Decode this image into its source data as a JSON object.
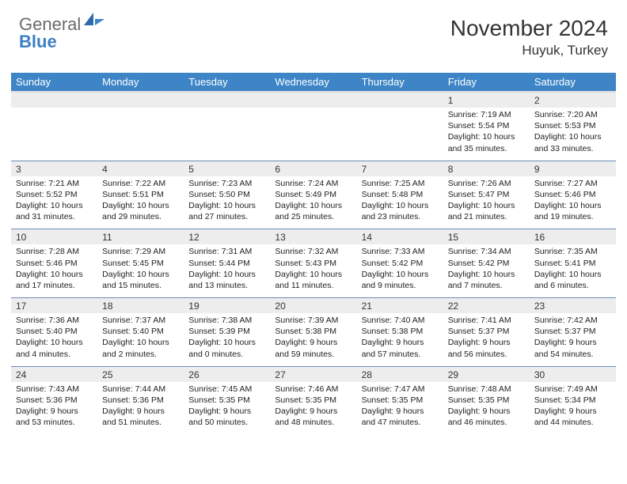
{
  "brand": {
    "part1": "General",
    "part2": "Blue"
  },
  "title": "November 2024",
  "location": "Huyuk, Turkey",
  "colors": {
    "header_bg": "#3d85c6",
    "header_text": "#ffffff",
    "daynum_bg": "#ededed",
    "row_rule": "#6a8db5",
    "body_text": "#222222",
    "brand_gray": "#6a6a6a",
    "brand_blue": "#3b7fc4",
    "page_bg": "#ffffff"
  },
  "typography": {
    "title_fontsize": 28,
    "location_fontsize": 17,
    "dow_fontsize": 13,
    "daynum_fontsize": 12,
    "details_fontsize": 10.5,
    "font_family": "Arial"
  },
  "days_of_week": [
    "Sunday",
    "Monday",
    "Tuesday",
    "Wednesday",
    "Thursday",
    "Friday",
    "Saturday"
  ],
  "weeks": [
    {
      "nums": [
        "",
        "",
        "",
        "",
        "",
        "1",
        "2"
      ],
      "cells": [
        null,
        null,
        null,
        null,
        null,
        {
          "sunrise": "Sunrise: 7:19 AM",
          "sunset": "Sunset: 5:54 PM",
          "day1": "Daylight: 10 hours",
          "day2": "and 35 minutes."
        },
        {
          "sunrise": "Sunrise: 7:20 AM",
          "sunset": "Sunset: 5:53 PM",
          "day1": "Daylight: 10 hours",
          "day2": "and 33 minutes."
        }
      ]
    },
    {
      "nums": [
        "3",
        "4",
        "5",
        "6",
        "7",
        "8",
        "9"
      ],
      "cells": [
        {
          "sunrise": "Sunrise: 7:21 AM",
          "sunset": "Sunset: 5:52 PM",
          "day1": "Daylight: 10 hours",
          "day2": "and 31 minutes."
        },
        {
          "sunrise": "Sunrise: 7:22 AM",
          "sunset": "Sunset: 5:51 PM",
          "day1": "Daylight: 10 hours",
          "day2": "and 29 minutes."
        },
        {
          "sunrise": "Sunrise: 7:23 AM",
          "sunset": "Sunset: 5:50 PM",
          "day1": "Daylight: 10 hours",
          "day2": "and 27 minutes."
        },
        {
          "sunrise": "Sunrise: 7:24 AM",
          "sunset": "Sunset: 5:49 PM",
          "day1": "Daylight: 10 hours",
          "day2": "and 25 minutes."
        },
        {
          "sunrise": "Sunrise: 7:25 AM",
          "sunset": "Sunset: 5:48 PM",
          "day1": "Daylight: 10 hours",
          "day2": "and 23 minutes."
        },
        {
          "sunrise": "Sunrise: 7:26 AM",
          "sunset": "Sunset: 5:47 PM",
          "day1": "Daylight: 10 hours",
          "day2": "and 21 minutes."
        },
        {
          "sunrise": "Sunrise: 7:27 AM",
          "sunset": "Sunset: 5:46 PM",
          "day1": "Daylight: 10 hours",
          "day2": "and 19 minutes."
        }
      ]
    },
    {
      "nums": [
        "10",
        "11",
        "12",
        "13",
        "14",
        "15",
        "16"
      ],
      "cells": [
        {
          "sunrise": "Sunrise: 7:28 AM",
          "sunset": "Sunset: 5:46 PM",
          "day1": "Daylight: 10 hours",
          "day2": "and 17 minutes."
        },
        {
          "sunrise": "Sunrise: 7:29 AM",
          "sunset": "Sunset: 5:45 PM",
          "day1": "Daylight: 10 hours",
          "day2": "and 15 minutes."
        },
        {
          "sunrise": "Sunrise: 7:31 AM",
          "sunset": "Sunset: 5:44 PM",
          "day1": "Daylight: 10 hours",
          "day2": "and 13 minutes."
        },
        {
          "sunrise": "Sunrise: 7:32 AM",
          "sunset": "Sunset: 5:43 PM",
          "day1": "Daylight: 10 hours",
          "day2": "and 11 minutes."
        },
        {
          "sunrise": "Sunrise: 7:33 AM",
          "sunset": "Sunset: 5:42 PM",
          "day1": "Daylight: 10 hours",
          "day2": "and 9 minutes."
        },
        {
          "sunrise": "Sunrise: 7:34 AM",
          "sunset": "Sunset: 5:42 PM",
          "day1": "Daylight: 10 hours",
          "day2": "and 7 minutes."
        },
        {
          "sunrise": "Sunrise: 7:35 AM",
          "sunset": "Sunset: 5:41 PM",
          "day1": "Daylight: 10 hours",
          "day2": "and 6 minutes."
        }
      ]
    },
    {
      "nums": [
        "17",
        "18",
        "19",
        "20",
        "21",
        "22",
        "23"
      ],
      "cells": [
        {
          "sunrise": "Sunrise: 7:36 AM",
          "sunset": "Sunset: 5:40 PM",
          "day1": "Daylight: 10 hours",
          "day2": "and 4 minutes."
        },
        {
          "sunrise": "Sunrise: 7:37 AM",
          "sunset": "Sunset: 5:40 PM",
          "day1": "Daylight: 10 hours",
          "day2": "and 2 minutes."
        },
        {
          "sunrise": "Sunrise: 7:38 AM",
          "sunset": "Sunset: 5:39 PM",
          "day1": "Daylight: 10 hours",
          "day2": "and 0 minutes."
        },
        {
          "sunrise": "Sunrise: 7:39 AM",
          "sunset": "Sunset: 5:38 PM",
          "day1": "Daylight: 9 hours",
          "day2": "and 59 minutes."
        },
        {
          "sunrise": "Sunrise: 7:40 AM",
          "sunset": "Sunset: 5:38 PM",
          "day1": "Daylight: 9 hours",
          "day2": "and 57 minutes."
        },
        {
          "sunrise": "Sunrise: 7:41 AM",
          "sunset": "Sunset: 5:37 PM",
          "day1": "Daylight: 9 hours",
          "day2": "and 56 minutes."
        },
        {
          "sunrise": "Sunrise: 7:42 AM",
          "sunset": "Sunset: 5:37 PM",
          "day1": "Daylight: 9 hours",
          "day2": "and 54 minutes."
        }
      ]
    },
    {
      "nums": [
        "24",
        "25",
        "26",
        "27",
        "28",
        "29",
        "30"
      ],
      "cells": [
        {
          "sunrise": "Sunrise: 7:43 AM",
          "sunset": "Sunset: 5:36 PM",
          "day1": "Daylight: 9 hours",
          "day2": "and 53 minutes."
        },
        {
          "sunrise": "Sunrise: 7:44 AM",
          "sunset": "Sunset: 5:36 PM",
          "day1": "Daylight: 9 hours",
          "day2": "and 51 minutes."
        },
        {
          "sunrise": "Sunrise: 7:45 AM",
          "sunset": "Sunset: 5:35 PM",
          "day1": "Daylight: 9 hours",
          "day2": "and 50 minutes."
        },
        {
          "sunrise": "Sunrise: 7:46 AM",
          "sunset": "Sunset: 5:35 PM",
          "day1": "Daylight: 9 hours",
          "day2": "and 48 minutes."
        },
        {
          "sunrise": "Sunrise: 7:47 AM",
          "sunset": "Sunset: 5:35 PM",
          "day1": "Daylight: 9 hours",
          "day2": "and 47 minutes."
        },
        {
          "sunrise": "Sunrise: 7:48 AM",
          "sunset": "Sunset: 5:35 PM",
          "day1": "Daylight: 9 hours",
          "day2": "and 46 minutes."
        },
        {
          "sunrise": "Sunrise: 7:49 AM",
          "sunset": "Sunset: 5:34 PM",
          "day1": "Daylight: 9 hours",
          "day2": "and 44 minutes."
        }
      ]
    }
  ]
}
